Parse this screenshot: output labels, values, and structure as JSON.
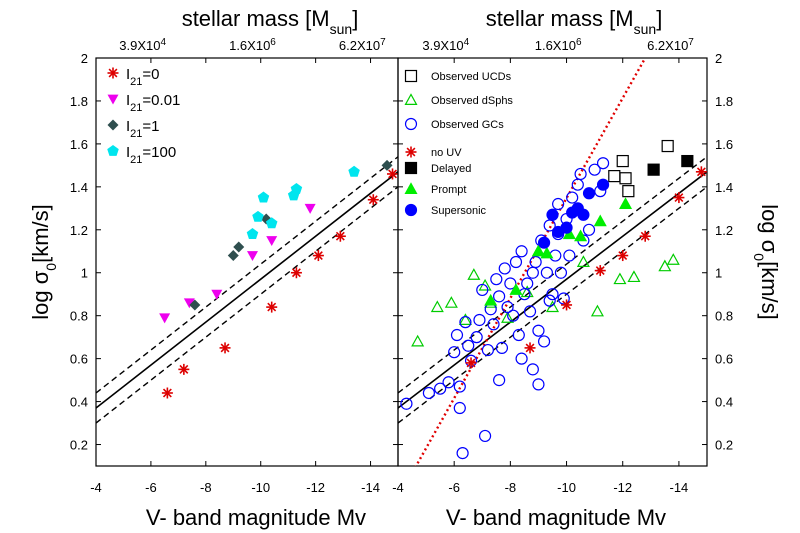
{
  "chart_data": [
    {
      "type": "scatter",
      "xlabel": "V- band magnitude Mv",
      "ylabel": "log σ0[km/s]",
      "top_label": "stellar mass [Msun]",
      "top_ticks": [
        "3.9X10^4",
        "1.6X10^6",
        "6.2X10^7"
      ],
      "xlim": [
        -4,
        -15
      ],
      "ylim": [
        0.1,
        2.0
      ],
      "xticks": [
        "-4",
        "-6",
        "-8",
        "-10",
        "-12",
        "-14"
      ],
      "yticks": [
        "0.2",
        "0.4",
        "0.6",
        "0.8",
        "1",
        "1.2",
        "1.4",
        "1.6",
        "1.8",
        "2"
      ],
      "series": [
        {
          "name": "I21=0",
          "marker": "asterisk",
          "color": "#dd0000",
          "x": [
            -6.6,
            -7.2,
            -8.7,
            -10.4,
            -11.3,
            -12.1,
            -12.9,
            -14.1,
            -14.8
          ],
          "y": [
            0.44,
            0.55,
            0.65,
            0.84,
            1.0,
            1.08,
            1.17,
            1.34,
            1.46
          ]
        },
        {
          "name": "I21=0.01",
          "marker": "triangle-down",
          "color": "#ee00ee",
          "x": [
            -6.5,
            -7.4,
            -8.4,
            -9.7,
            -10.4,
            -11.8
          ],
          "y": [
            0.79,
            0.86,
            0.9,
            1.08,
            1.15,
            1.3
          ]
        },
        {
          "name": "I21=1",
          "marker": "diamond",
          "color": "#2f4f4f",
          "x": [
            -7.6,
            -9.0,
            -9.2,
            -10.2,
            -14.6
          ],
          "y": [
            0.85,
            1.08,
            1.12,
            1.25,
            1.5
          ]
        },
        {
          "name": "I21=100",
          "marker": "pentagon",
          "color": "#00e5ee",
          "x": [
            -9.7,
            -9.9,
            -10.1,
            -10.4,
            -11.2,
            -11.3,
            -13.4
          ],
          "y": [
            1.18,
            1.26,
            1.35,
            1.23,
            1.36,
            1.39,
            1.47
          ]
        }
      ]
    },
    {
      "type": "scatter",
      "xlabel": "V- band magnitude Mv",
      "ylabel": "log σ0[km/s]",
      "top_label": "stellar mass [Msun]",
      "top_ticks": [
        "3.9X10^4",
        "1.6X10^6",
        "6.2X10^7"
      ],
      "xlim": [
        -4,
        -15
      ],
      "ylim": [
        0.1,
        2.0
      ],
      "xticks": [
        "-4",
        "-6",
        "-8",
        "-10",
        "-12",
        "-14"
      ],
      "yticks": [
        "0.2",
        "0.4",
        "0.6",
        "0.8",
        "1",
        "1.2",
        "1.4",
        "1.6",
        "1.8",
        "2"
      ],
      "series": [
        {
          "name": "Observed UCDs",
          "marker": "square-open",
          "color": "#000000",
          "x": [
            -11.7,
            -12.0,
            -12.1,
            -12.2,
            -13.6
          ],
          "y": [
            1.45,
            1.52,
            1.44,
            1.38,
            1.59
          ]
        },
        {
          "name": "Observed dSphs",
          "marker": "triangle-open",
          "color": "#00cc00",
          "x": [
            -4.7,
            -5.4,
            -5.9,
            -6.4,
            -6.7,
            -7.1,
            -7.3,
            -7.9,
            -8.6,
            -9.0,
            -9.5,
            -10.6,
            -11.1,
            -11.9,
            -12.4,
            -13.5,
            -13.8
          ],
          "y": [
            0.68,
            0.84,
            0.86,
            0.78,
            0.99,
            0.94,
            0.86,
            0.79,
            0.91,
            1.1,
            0.84,
            1.05,
            0.82,
            0.97,
            0.98,
            1.03,
            1.06
          ]
        },
        {
          "name": "Observed GCs",
          "marker": "circle-open",
          "color": "#0000ff",
          "x": [
            -4.3,
            -5.1,
            -5.5,
            -5.8,
            -6.0,
            -6.1,
            -6.2,
            -6.3,
            -6.4,
            -6.5,
            -6.6,
            -6.8,
            -6.9,
            -7.0,
            -7.2,
            -7.3,
            -7.4,
            -7.5,
            -7.6,
            -7.7,
            -7.8,
            -7.9,
            -8.0,
            -8.1,
            -8.2,
            -8.3,
            -8.4,
            -8.5,
            -8.6,
            -8.7,
            -8.8,
            -8.9,
            -9.0,
            -9.1,
            -9.2,
            -9.3,
            -9.4,
            -9.5,
            -9.6,
            -9.7,
            -9.8,
            -9.9,
            -10.0,
            -10.2,
            -10.4,
            -10.6,
            -10.8,
            -11.0,
            -11.2,
            -11.3,
            -7.1,
            -6.2,
            -8.4,
            -9.0,
            -8.8,
            -7.6,
            -9.4,
            -10.1,
            -9.7,
            -10.5
          ],
          "y": [
            0.39,
            0.44,
            0.46,
            0.49,
            0.63,
            0.71,
            0.47,
            0.16,
            0.77,
            0.66,
            0.59,
            0.7,
            0.78,
            0.92,
            0.64,
            0.83,
            0.76,
            0.97,
            0.89,
            0.65,
            1.02,
            0.84,
            0.95,
            0.8,
            1.05,
            0.71,
            1.1,
            0.9,
            0.95,
            0.82,
            1.0,
            1.05,
            0.73,
            1.15,
            0.68,
            1.0,
            1.22,
            0.9,
            1.08,
            1.32,
            1.0,
            0.88,
            1.25,
            1.35,
            1.41,
            1.15,
            1.2,
            1.48,
            1.38,
            1.51,
            0.24,
            0.37,
            0.6,
            0.48,
            0.55,
            0.5,
            0.87,
            1.08,
            1.18,
            1.46
          ]
        },
        {
          "name": "no UV",
          "marker": "asterisk",
          "color": "#dd0000",
          "x": [
            -6.6,
            -8.7,
            -10.0,
            -11.2,
            -12.0,
            -12.8,
            -14.0,
            -14.8
          ],
          "y": [
            0.58,
            0.65,
            0.85,
            1.01,
            1.08,
            1.17,
            1.35,
            1.47
          ]
        },
        {
          "name": "Delayed",
          "marker": "square",
          "color": "#000000",
          "x": [
            -13.1,
            -14.3
          ],
          "y": [
            1.48,
            1.52
          ]
        },
        {
          "name": "Prompt",
          "marker": "triangle",
          "color": "#00ee00",
          "x": [
            -7.3,
            -8.2,
            -9.0,
            -9.3,
            -10.1,
            -10.5,
            -11.2,
            -12.1
          ],
          "y": [
            0.87,
            0.92,
            1.1,
            1.09,
            1.18,
            1.17,
            1.24,
            1.32
          ]
        },
        {
          "name": "Supersonic",
          "marker": "circle",
          "color": "#0000ff",
          "x": [
            -9.2,
            -9.7,
            -10.0,
            -10.2,
            -10.4,
            -10.6,
            -10.8,
            -11.3,
            -9.5
          ],
          "y": [
            1.14,
            1.19,
            1.21,
            1.28,
            1.3,
            1.27,
            1.37,
            1.41,
            1.27
          ]
        }
      ]
    }
  ],
  "legend_left": [
    "I21=0",
    "I21=0.01",
    "I21=1",
    "I21=100"
  ],
  "legend_right": [
    "Observed UCDs",
    "Observed dSphs",
    "Observed GCs",
    "no UV",
    "Delayed",
    "Prompt",
    "Supersonic"
  ]
}
